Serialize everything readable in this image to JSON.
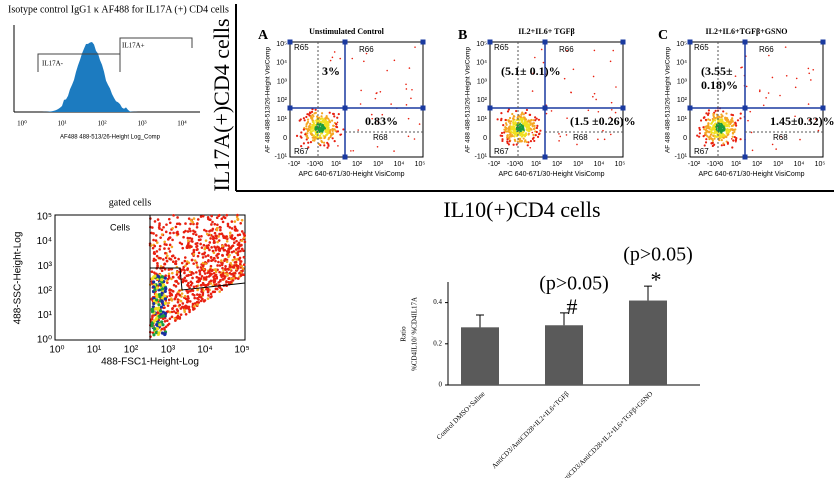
{
  "isotype": {
    "title": "Isotype control IgG1 κ AF488 for IL17A (+) CD4 cells",
    "gates": [
      "IL17A-",
      "IL17A+"
    ],
    "xticks": [
      "10⁰",
      "10¹",
      "10²",
      "10³",
      "10⁴"
    ],
    "xlabel": "AF488 488-513/26-Height Log_Comp"
  },
  "gated": {
    "title": "gated cells",
    "gate": "Cells",
    "xticks": [
      "10⁰",
      "10¹",
      "10²",
      "10³",
      "10⁴",
      "10⁵"
    ],
    "yticks": [
      "10⁵",
      "10⁴",
      "10³",
      "10²",
      "10¹",
      "10⁰"
    ],
    "xlabel": "488-FSC1-Height-Log",
    "ylabel": "488-SSC-Height-Log"
  },
  "row_label": "IL17A(+)CD4 cells",
  "column_label": "IL10(+)CD4 cells",
  "flow_axes": {
    "ylabel": "AF 488 488-513/26-Height VisiComp",
    "xlabel": "APC 640-671/30-Height VisiComp",
    "yticks": [
      "10⁵",
      "10⁴",
      "10³",
      "10²",
      "10¹",
      "0",
      "-10¹"
    ],
    "xticks": [
      "-10²",
      "-10¹0",
      "10¹",
      "10²",
      "10³",
      "10⁴",
      "10⁵"
    ]
  },
  "flow_panels": [
    {
      "letter": "A",
      "title": "Unstimulated Control",
      "regions": [
        "R65",
        "R66",
        "R67",
        "R68"
      ],
      "upper_left": [
        "3%"
      ],
      "lower_right": "0.83%"
    },
    {
      "letter": "B",
      "title": "IL2+IL6+ TGFβ",
      "regions": [
        "R65",
        "R66",
        "R67",
        "R68"
      ],
      "upper_left": [
        "(5.1± 0.1)%"
      ],
      "lower_right": "(1.5 ±0.26)%"
    },
    {
      "letter": "C",
      "title": "IL2+IL6+TGFβ+GSNO",
      "regions": [
        "R65",
        "R66",
        "R67",
        "R68"
      ],
      "upper_left": [
        "(3.55±",
        "0.18)%"
      ],
      "lower_right": "1.45±0.32)%"
    }
  ],
  "chart_data": {
    "type": "bar",
    "ylabel": [
      "Ratio",
      "%CD4IL10/ %CD4IL17A"
    ],
    "categories": [
      "Control DMSO+Saline",
      "AntiCD3/AntiCD28+IL2+IL6+TGFβ",
      "AntiCD3/AntiCD28+IL2+IL6+TGFβ+GSNO"
    ],
    "values": [
      0.28,
      0.29,
      0.41
    ],
    "errors": [
      0.06,
      0.06,
      0.07
    ],
    "color": "#5a5a5a",
    "annotations": [
      null,
      {
        "p": "(p>0.05)",
        "mark": "#"
      },
      {
        "p": "(p>0.05)",
        "mark": "*"
      }
    ],
    "ylim": [
      0,
      0.5
    ],
    "yticks": [
      0,
      0.2,
      0.4
    ]
  }
}
